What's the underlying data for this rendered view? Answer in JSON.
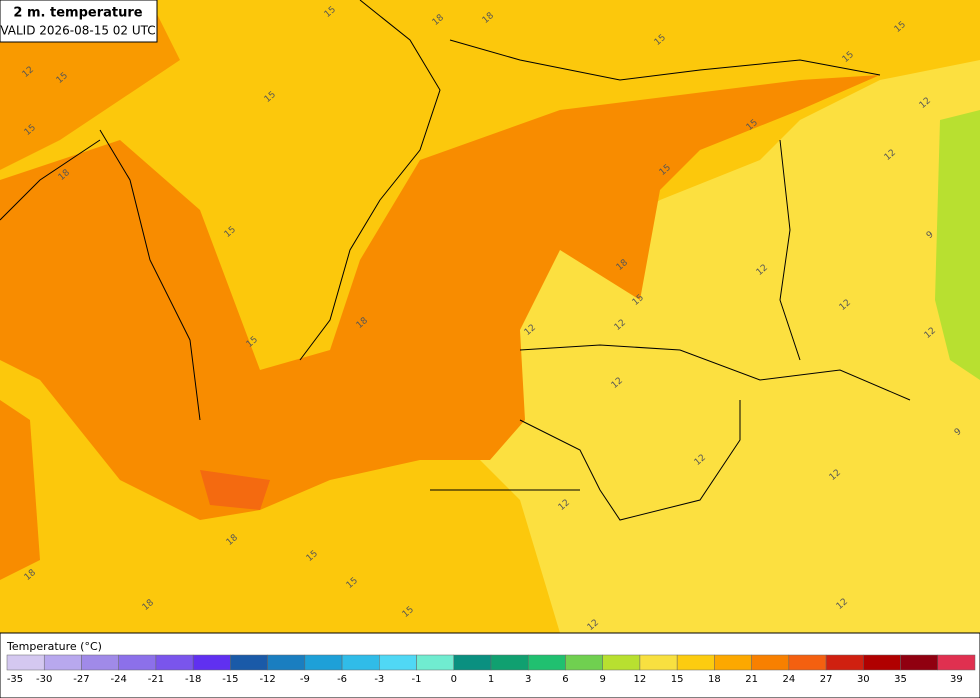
{
  "header": {
    "title": "2 m. temperature",
    "valid": "VALID 2026-08-15 02 UTC"
  },
  "legend": {
    "title": "Temperature (°C)",
    "items": [
      {
        "label": "-35",
        "color": "#d4c8f0"
      },
      {
        "label": "-30",
        "color": "#b8a8ee"
      },
      {
        "label": "-27",
        "color": "#a08ae8"
      },
      {
        "label": "-24",
        "color": "#8c70ea"
      },
      {
        "label": "-21",
        "color": "#7a55ec"
      },
      {
        "label": "-18",
        "color": "#6030f0"
      },
      {
        "label": "-15",
        "color": "#1a5aa8"
      },
      {
        "label": "-12",
        "color": "#1a7ec0"
      },
      {
        "label": "-9",
        "color": "#1ea0d8"
      },
      {
        "label": "-6",
        "color": "#30bce8"
      },
      {
        "label": "-3",
        "color": "#50d8f5"
      },
      {
        "label": "-1",
        "color": "#70ecd0"
      },
      {
        "label": "0",
        "color": "#0a9080"
      },
      {
        "label": "1",
        "color": "#10a070"
      },
      {
        "label": "3",
        "color": "#20c070"
      },
      {
        "label": "6",
        "color": "#70d050"
      },
      {
        "label": "9",
        "color": "#b8e030"
      },
      {
        "label": "12",
        "color": "#f8e040"
      },
      {
        "label": "15",
        "color": "#fccc10"
      },
      {
        "label": "18",
        "color": "#fca800"
      },
      {
        "label": "21",
        "color": "#f88000"
      },
      {
        "label": "24",
        "color": "#f46010"
      },
      {
        "label": "27",
        "color": "#d02010"
      },
      {
        "label": "30",
        "color": "#b00000"
      },
      {
        "label": "35",
        "color": "#900010"
      },
      {
        "label": "39",
        "color": "#e03050"
      }
    ]
  },
  "map": {
    "contour_labels": [
      "15",
      "15",
      "15",
      "15",
      "15",
      "15",
      "15",
      "15",
      "15",
      "15",
      "15",
      "15",
      "15",
      "15",
      "15",
      "18",
      "18",
      "18",
      "18",
      "18",
      "18",
      "18",
      "18",
      "12",
      "12",
      "12",
      "12",
      "12",
      "12",
      "12",
      "12",
      "12",
      "12",
      "12",
      "12",
      "12",
      "12",
      "9",
      "9"
    ]
  }
}
